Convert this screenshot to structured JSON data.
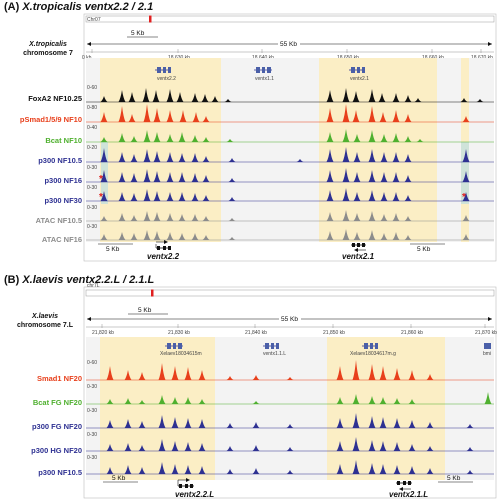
{
  "panels": [
    {
      "letter": "(A)",
      "title": "X.tropicalis ventx2.2 / 2.1",
      "chrom_tag": "Chr07",
      "scale_label": "55 Kb",
      "small_scale": "5 Kb",
      "species": "X.tropicalis",
      "chromosome": "chromosome 7",
      "coords": [
        "0 kb",
        "18,630 kb",
        "18,640 kb",
        "18,650 kb",
        "18,660 kb",
        "18,670 kb"
      ],
      "genes_small": [
        "ventx2.2",
        "ventx1.1",
        "ventx2.1"
      ],
      "track_scales": [
        "0-60",
        "0-80",
        "0-40",
        "0-20",
        "0-30",
        "0-30",
        "0-30",
        "0-30"
      ],
      "tracks": [
        {
          "label": "FoxA2 NF10.25",
          "color": "#111111"
        },
        {
          "label": "pSmad1/5/9 NF10",
          "color": "#e8401c"
        },
        {
          "label": "Bcat NF10",
          "color": "#4fb02f"
        },
        {
          "label": "p300 NF10.5",
          "color": "#2e3192"
        },
        {
          "label": "p300      NF16",
          "color": "#2e3192"
        },
        {
          "label": "p300      NF30",
          "color": "#2e3192"
        },
        {
          "label": "ATAC  NF10.5",
          "color": "#8c8c8c"
        },
        {
          "label": "ATAC      NF16",
          "color": "#8c8c8c"
        }
      ],
      "bottom_scale_left": "5 Kb",
      "bottom_scale_right": "5 Kb",
      "gene_names": [
        "ventx2.2",
        "ventx2.1"
      ]
    },
    {
      "letter": "(B)",
      "title": "X.laevis ventx2.2.L / 2.1.L",
      "chrom_tag": "chr7L",
      "scale_label": "55 Kb",
      "small_scale": "5 Kb",
      "species": "X.laevis",
      "chromosome": "chromosome 7.L",
      "coords": [
        "21,820 kb",
        "21,830 kb",
        "21,840 kb",
        "21,850 kb",
        "21,860 kb",
        "21,870 kb"
      ],
      "genes_small": [
        "Xelaev18034615m",
        "ventx1.1.L",
        "Xelaev18034617m.g",
        "bmi"
      ],
      "track_scales": [
        "0-60",
        "0-30",
        "0-30",
        "0-30",
        "0-30"
      ],
      "tracks": [
        {
          "label": "Smad1 NF20",
          "color": "#e8401c"
        },
        {
          "label": "Bcat FG NF20",
          "color": "#4fb02f"
        },
        {
          "label": "p300 FG NF20",
          "color": "#2e3192"
        },
        {
          "label": "p300 HG NF20",
          "color": "#2e3192"
        },
        {
          "label": "p300 NF10.5",
          "color": "#2e3192"
        }
      ],
      "bottom_scale_left": "5 Kb",
      "bottom_scale_right": "5 Kb",
      "gene_names": [
        "ventx2.2.L",
        "ventx2.1.L"
      ]
    }
  ],
  "highlight_color": "#fbeec5",
  "teal_highlight": "#cfe3d9",
  "asterisk": "*"
}
